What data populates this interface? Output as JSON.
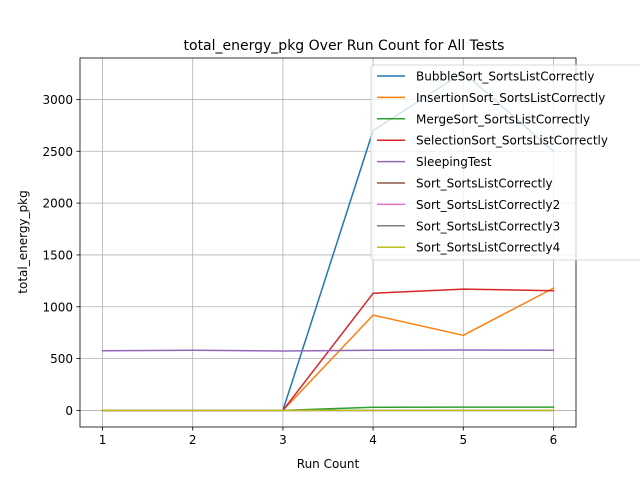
{
  "chart_data": {
    "type": "line",
    "title": "total_energy_pkg Over Run Count for All Tests",
    "xlabel": "Run Count",
    "ylabel": "total_energy_pkg",
    "x": [
      1,
      2,
      3,
      4,
      5,
      6
    ],
    "xlim": [
      0.75,
      6.25
    ],
    "ylim": [
      -160,
      3400
    ],
    "xticks": [
      "1",
      "2",
      "3",
      "4",
      "5",
      "6"
    ],
    "yticks": [
      "0",
      "500",
      "1000",
      "1500",
      "2000",
      "2500",
      "3000"
    ],
    "grid": true,
    "legend_position": "upper-right",
    "series": [
      {
        "name": "BubbleSort_SortsListCorrectly",
        "color": "#1f77b4",
        "values": [
          0,
          0,
          0,
          2700,
          3260,
          2500
        ]
      },
      {
        "name": "InsertionSort_SortsListCorrectly",
        "color": "#ff7f0e",
        "values": [
          0,
          0,
          0,
          920,
          725,
          1180
        ]
      },
      {
        "name": "MergeSort_SortsListCorrectly",
        "color": "#2ca02c",
        "values": [
          0,
          0,
          0,
          30,
          32,
          32
        ]
      },
      {
        "name": "SelectionSort_SortsListCorrectly",
        "color": "#d62728",
        "values": [
          0,
          0,
          0,
          1130,
          1170,
          1155
        ]
      },
      {
        "name": "SleepingTest",
        "color": "#9467bd",
        "values": [
          575,
          580,
          573,
          580,
          583,
          580
        ]
      },
      {
        "name": "Sort_SortsListCorrectly",
        "color": "#8c564b",
        "values": [
          0,
          0,
          0,
          0,
          0,
          0
        ]
      },
      {
        "name": "Sort_SortsListCorrectly2",
        "color": "#e377c2",
        "values": [
          0,
          0,
          0,
          0,
          0,
          0
        ]
      },
      {
        "name": "Sort_SortsListCorrectly3",
        "color": "#7f7f7f",
        "values": [
          0,
          0,
          0,
          0,
          0,
          0
        ]
      },
      {
        "name": "Sort_SortsListCorrectly4",
        "color": "#bcbd22",
        "values": [
          0,
          0,
          0,
          0,
          0,
          0
        ]
      }
    ]
  }
}
